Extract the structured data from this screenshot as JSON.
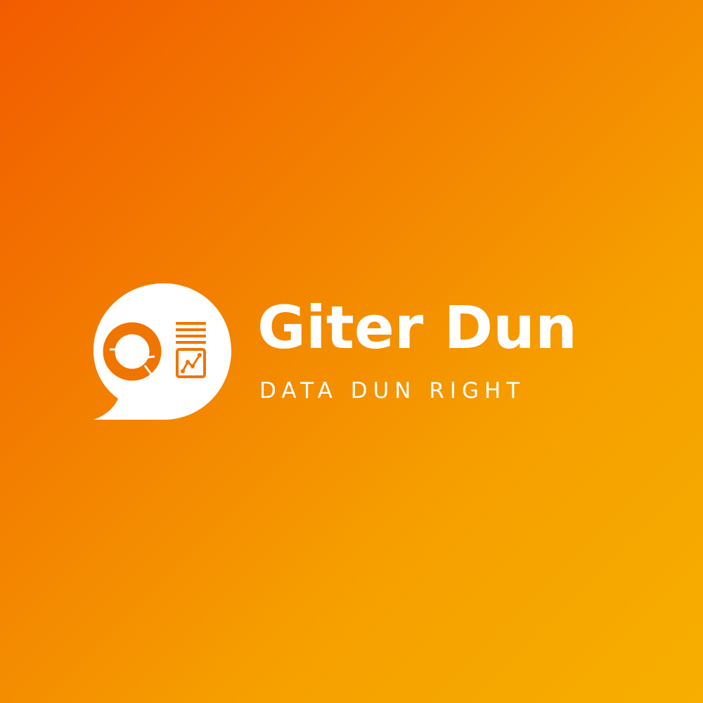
{
  "brand": {
    "name": "Giter Dun",
    "tagline": "DATA DUN RIGHT"
  },
  "logo": {
    "icon": "chat-bubble-data-report-icon",
    "icons": [
      "donut-chart-icon",
      "text-lines-icon",
      "line-chart-icon"
    ]
  },
  "colors": {
    "gradient_start": "#F25C00",
    "gradient_end": "#F7AE00",
    "foreground": "#FFFFFF",
    "icon_accent": "#F07400"
  }
}
